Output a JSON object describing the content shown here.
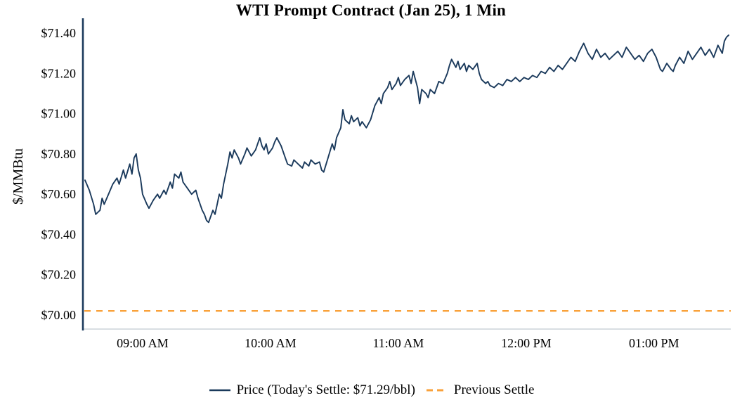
{
  "chart_data": {
    "type": "line",
    "title": "WTI Prompt Contract (Jan 25), 1 Min",
    "ylabel": "$/MMBtu",
    "xlabel": "",
    "x_unit": "minutes_since_midnight",
    "xlim": [
      512,
      816
    ],
    "ylim": [
      69.93,
      71.46
    ],
    "grid": false,
    "legend_position": "bottom",
    "todays_settle": 71.29,
    "previous_settle": 70.02,
    "colors": {
      "price_line": "#1b3a5c",
      "prev_settle_line": "#f9a13a",
      "axis_spine": "#1b3a5c",
      "baseline": "#ccd3da"
    },
    "y_ticks": [
      {
        "value": 70.0,
        "label": "$70.00"
      },
      {
        "value": 70.2,
        "label": "$70.20"
      },
      {
        "value": 70.4,
        "label": "$70.40"
      },
      {
        "value": 70.6,
        "label": "$70.60"
      },
      {
        "value": 70.8,
        "label": "$70.80"
      },
      {
        "value": 71.0,
        "label": "$71.00"
      },
      {
        "value": 71.2,
        "label": "$71.20"
      },
      {
        "value": 71.4,
        "label": "$71.40"
      }
    ],
    "x_ticks": [
      {
        "value": 540,
        "label": "09:00 AM"
      },
      {
        "value": 600,
        "label": "10:00 AM"
      },
      {
        "value": 660,
        "label": "11:00 AM"
      },
      {
        "value": 720,
        "label": "12:00 PM"
      },
      {
        "value": 780,
        "label": "01:00 PM"
      }
    ],
    "series": [
      {
        "name": "Price (Today's Settle: $71.29/bbl)",
        "color": "#1b3a5c",
        "style": "solid",
        "points": [
          [
            513,
            70.67
          ],
          [
            515,
            70.62
          ],
          [
            517,
            70.55
          ],
          [
            518,
            70.5
          ],
          [
            520,
            70.52
          ],
          [
            521,
            70.58
          ],
          [
            522,
            70.55
          ],
          [
            524,
            70.6
          ],
          [
            526,
            70.65
          ],
          [
            528,
            70.68
          ],
          [
            529,
            70.65
          ],
          [
            531,
            70.72
          ],
          [
            532,
            70.68
          ],
          [
            534,
            70.75
          ],
          [
            535,
            70.7
          ],
          [
            536,
            70.78
          ],
          [
            537,
            70.8
          ],
          [
            538,
            70.72
          ],
          [
            539,
            70.68
          ],
          [
            540,
            70.6
          ],
          [
            542,
            70.55
          ],
          [
            543,
            70.53
          ],
          [
            545,
            70.57
          ],
          [
            547,
            70.6
          ],
          [
            548,
            70.58
          ],
          [
            550,
            70.62
          ],
          [
            551,
            70.6
          ],
          [
            553,
            70.66
          ],
          [
            554,
            70.63
          ],
          [
            555,
            70.7
          ],
          [
            557,
            70.68
          ],
          [
            558,
            70.71
          ],
          [
            559,
            70.66
          ],
          [
            561,
            70.63
          ],
          [
            563,
            70.6
          ],
          [
            565,
            70.62
          ],
          [
            566,
            70.58
          ],
          [
            568,
            70.52
          ],
          [
            569,
            70.5
          ],
          [
            570,
            70.47
          ],
          [
            571,
            70.46
          ],
          [
            573,
            70.52
          ],
          [
            574,
            70.5
          ],
          [
            575,
            70.55
          ],
          [
            576,
            70.6
          ],
          [
            577,
            70.58
          ],
          [
            578,
            70.65
          ],
          [
            579,
            70.7
          ],
          [
            580,
            70.75
          ],
          [
            581,
            70.81
          ],
          [
            582,
            70.78
          ],
          [
            583,
            70.82
          ],
          [
            585,
            70.78
          ],
          [
            586,
            70.75
          ],
          [
            588,
            70.8
          ],
          [
            589,
            70.83
          ],
          [
            591,
            70.79
          ],
          [
            593,
            70.82
          ],
          [
            594,
            70.85
          ],
          [
            595,
            70.88
          ],
          [
            596,
            70.84
          ],
          [
            597,
            70.82
          ],
          [
            598,
            70.85
          ],
          [
            599,
            70.8
          ],
          [
            601,
            70.83
          ],
          [
            602,
            70.86
          ],
          [
            603,
            70.88
          ],
          [
            605,
            70.84
          ],
          [
            607,
            70.78
          ],
          [
            608,
            70.75
          ],
          [
            610,
            70.74
          ],
          [
            611,
            70.77
          ],
          [
            613,
            70.75
          ],
          [
            615,
            70.73
          ],
          [
            616,
            70.76
          ],
          [
            618,
            70.74
          ],
          [
            619,
            70.77
          ],
          [
            621,
            70.75
          ],
          [
            623,
            70.76
          ],
          [
            624,
            70.72
          ],
          [
            625,
            70.71
          ],
          [
            627,
            70.78
          ],
          [
            629,
            70.85
          ],
          [
            630,
            70.82
          ],
          [
            631,
            70.88
          ],
          [
            633,
            70.93
          ],
          [
            634,
            71.02
          ],
          [
            635,
            70.97
          ],
          [
            637,
            70.95
          ],
          [
            638,
            70.99
          ],
          [
            639,
            70.96
          ],
          [
            641,
            70.98
          ],
          [
            642,
            70.94
          ],
          [
            643,
            70.96
          ],
          [
            645,
            70.93
          ],
          [
            647,
            70.97
          ],
          [
            649,
            71.04
          ],
          [
            651,
            71.08
          ],
          [
            652,
            71.05
          ],
          [
            653,
            71.1
          ],
          [
            655,
            71.13
          ],
          [
            656,
            71.16
          ],
          [
            657,
            71.12
          ],
          [
            659,
            71.15
          ],
          [
            660,
            71.18
          ],
          [
            661,
            71.14
          ],
          [
            663,
            71.17
          ],
          [
            665,
            71.19
          ],
          [
            666,
            71.15
          ],
          [
            667,
            71.21
          ],
          [
            669,
            71.13
          ],
          [
            670,
            71.05
          ],
          [
            671,
            71.12
          ],
          [
            673,
            71.1
          ],
          [
            674,
            71.08
          ],
          [
            675,
            71.12
          ],
          [
            677,
            71.1
          ],
          [
            678,
            71.13
          ],
          [
            679,
            71.16
          ],
          [
            681,
            71.15
          ],
          [
            683,
            71.2
          ],
          [
            684,
            71.24
          ],
          [
            685,
            71.27
          ],
          [
            687,
            71.23
          ],
          [
            688,
            71.26
          ],
          [
            689,
            71.22
          ],
          [
            691,
            71.25
          ],
          [
            692,
            71.21
          ],
          [
            693,
            71.24
          ],
          [
            695,
            71.22
          ],
          [
            697,
            71.25
          ],
          [
            698,
            71.2
          ],
          [
            699,
            71.17
          ],
          [
            701,
            71.15
          ],
          [
            702,
            71.16
          ],
          [
            703,
            71.14
          ],
          [
            705,
            71.13
          ],
          [
            707,
            71.15
          ],
          [
            709,
            71.14
          ],
          [
            711,
            71.17
          ],
          [
            713,
            71.16
          ],
          [
            715,
            71.18
          ],
          [
            717,
            71.16
          ],
          [
            719,
            71.18
          ],
          [
            721,
            71.17
          ],
          [
            723,
            71.19
          ],
          [
            725,
            71.18
          ],
          [
            727,
            71.21
          ],
          [
            729,
            71.2
          ],
          [
            731,
            71.23
          ],
          [
            733,
            71.21
          ],
          [
            735,
            71.24
          ],
          [
            737,
            71.22
          ],
          [
            739,
            71.25
          ],
          [
            741,
            71.28
          ],
          [
            743,
            71.26
          ],
          [
            745,
            71.31
          ],
          [
            747,
            71.35
          ],
          [
            749,
            71.3
          ],
          [
            751,
            71.27
          ],
          [
            753,
            71.32
          ],
          [
            755,
            71.28
          ],
          [
            757,
            71.3
          ],
          [
            759,
            71.27
          ],
          [
            761,
            71.29
          ],
          [
            763,
            71.31
          ],
          [
            765,
            71.28
          ],
          [
            767,
            71.33
          ],
          [
            769,
            71.3
          ],
          [
            771,
            71.27
          ],
          [
            773,
            71.29
          ],
          [
            775,
            71.26
          ],
          [
            777,
            71.3
          ],
          [
            779,
            71.32
          ],
          [
            781,
            71.28
          ],
          [
            783,
            71.22
          ],
          [
            784,
            71.21
          ],
          [
            786,
            71.25
          ],
          [
            788,
            71.22
          ],
          [
            789,
            71.21
          ],
          [
            790,
            71.24
          ],
          [
            792,
            71.28
          ],
          [
            794,
            71.25
          ],
          [
            796,
            71.31
          ],
          [
            798,
            71.27
          ],
          [
            800,
            71.3
          ],
          [
            802,
            71.33
          ],
          [
            804,
            71.29
          ],
          [
            806,
            71.32
          ],
          [
            808,
            71.28
          ],
          [
            809,
            71.31
          ],
          [
            810,
            71.34
          ],
          [
            812,
            71.3
          ],
          [
            813,
            71.36
          ],
          [
            814,
            71.38
          ],
          [
            815,
            71.39
          ]
        ]
      },
      {
        "name": "Previous Settle",
        "color": "#f9a13a",
        "style": "dashed",
        "value": 70.02
      }
    ]
  }
}
